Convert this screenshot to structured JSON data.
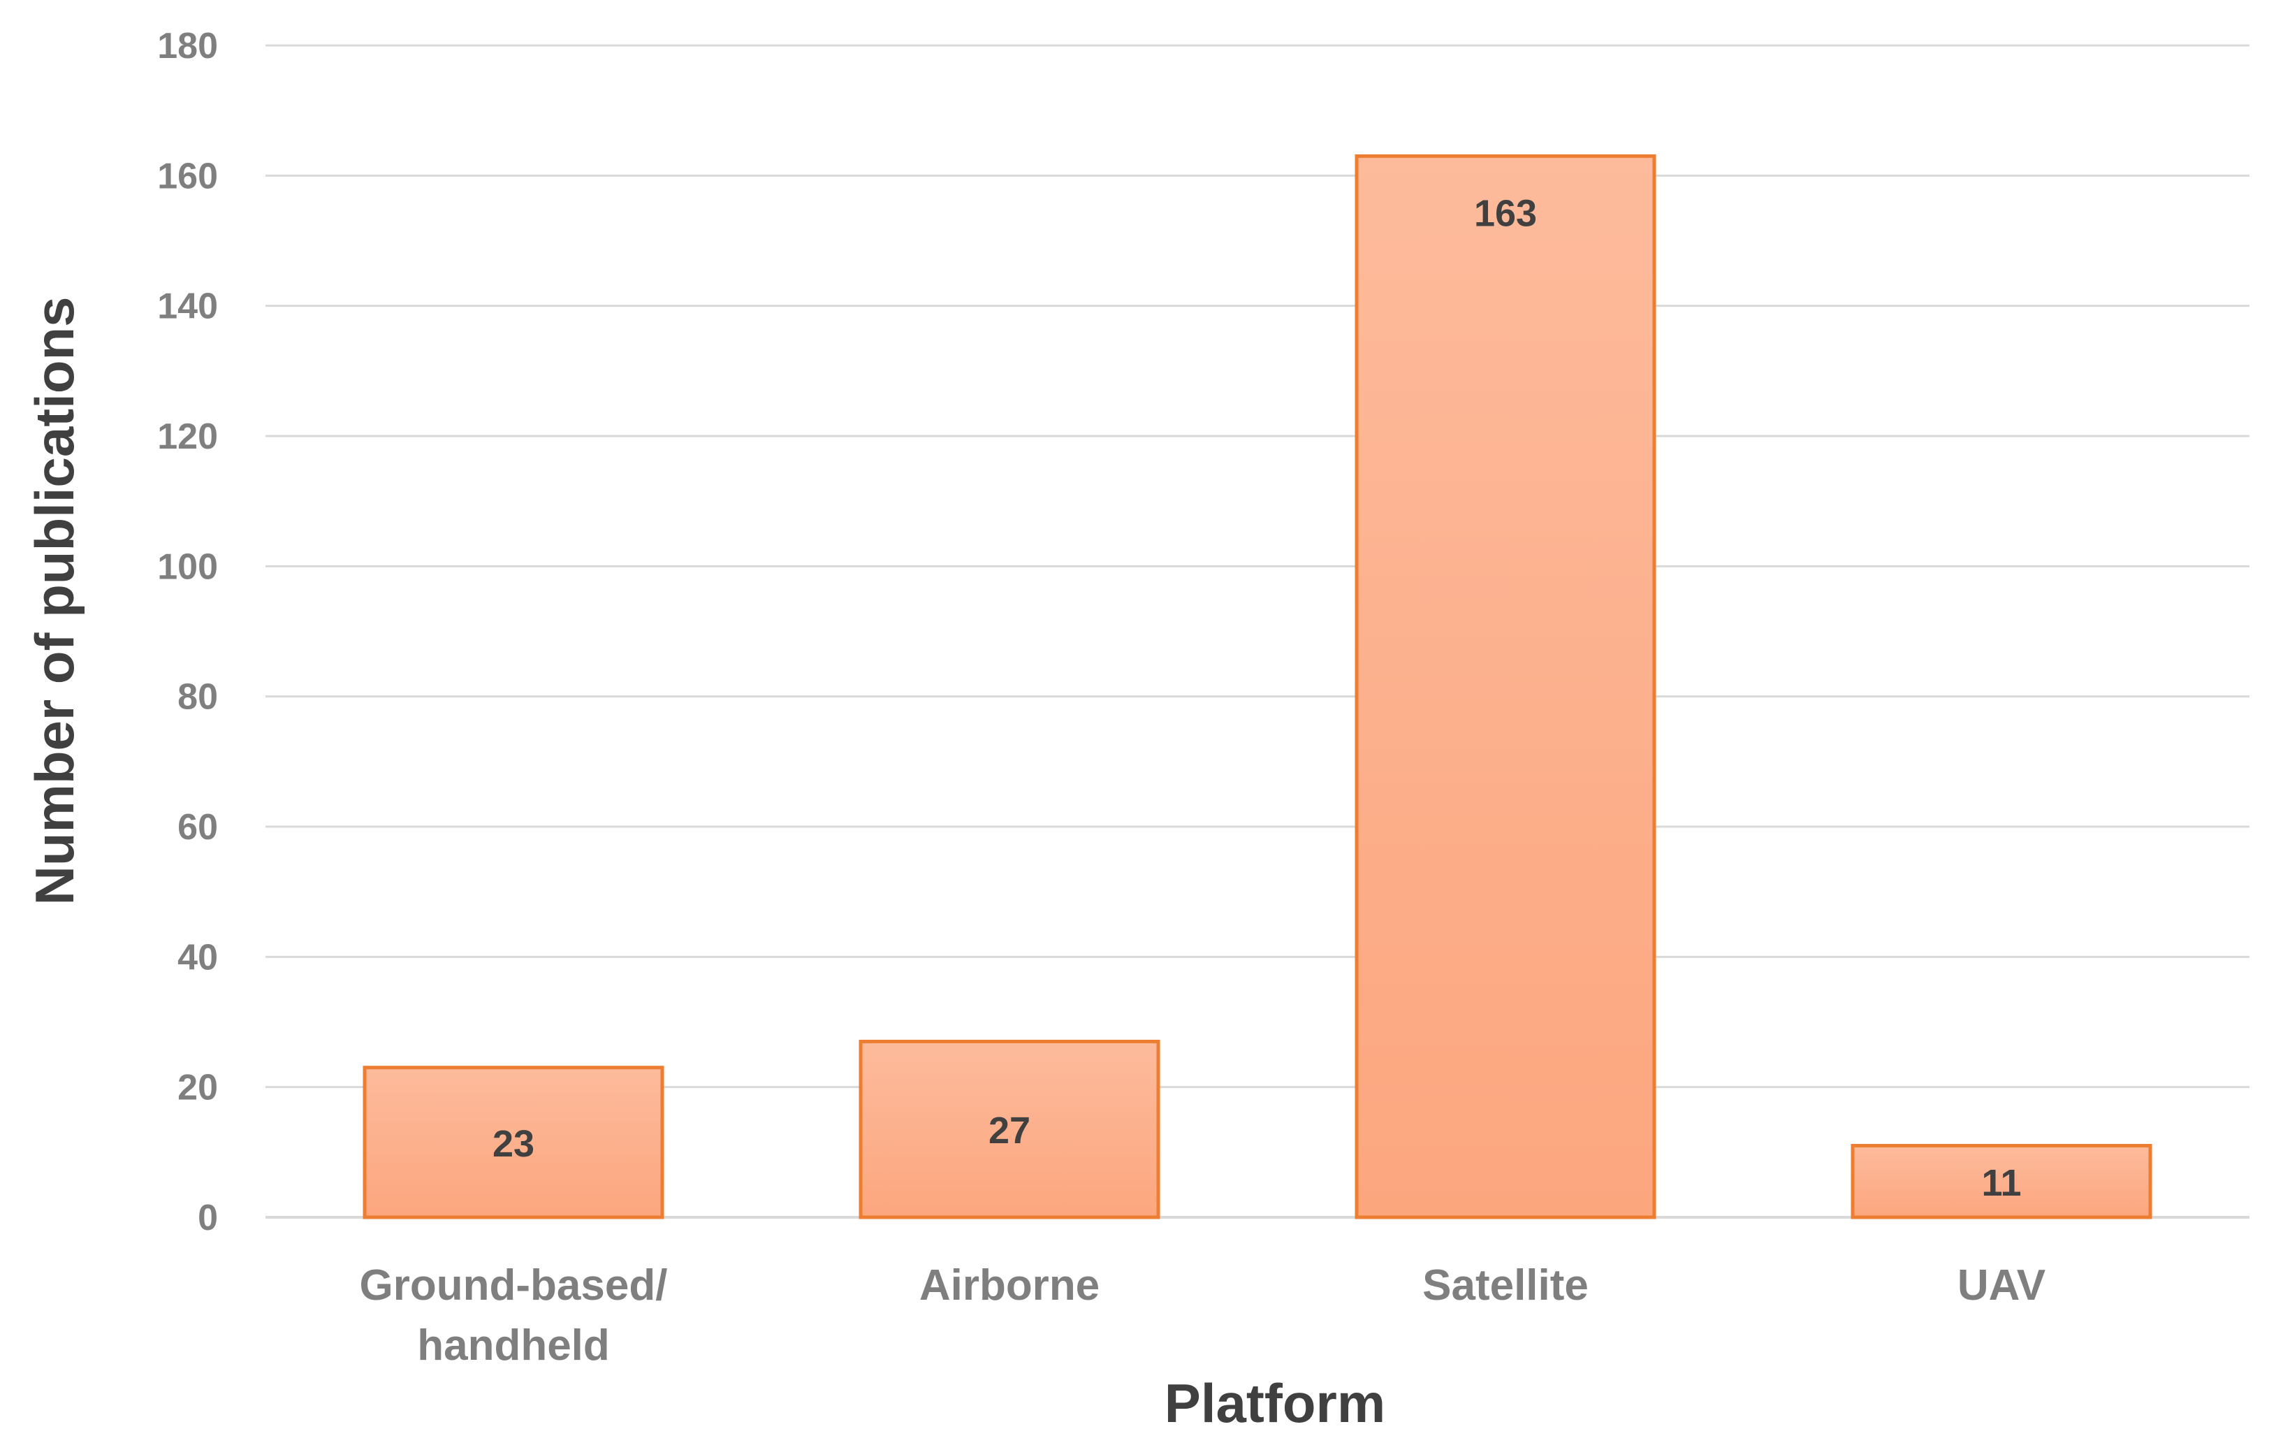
{
  "chart_data": {
    "type": "bar",
    "categories": [
      "Ground-based/\nhandheld",
      "Airborne",
      "Satellite",
      "UAV"
    ],
    "values": [
      23,
      27,
      163,
      11
    ],
    "data_labels": [
      "23",
      "27",
      "163",
      "11"
    ],
    "title": "",
    "xlabel": "Platform",
    "ylabel": "Number of publications",
    "ylim": [
      0,
      180
    ],
    "yticks": [
      0,
      20,
      40,
      60,
      80,
      100,
      120,
      140,
      160,
      180
    ],
    "grid": true,
    "legend": "none",
    "colors": {
      "bar_fill_top": "#fdbb9c",
      "bar_fill_bottom": "#fca67e",
      "bar_edge": "#ed7d31",
      "grid": "#d9d9d9",
      "tick_text": "#7f7f7f",
      "label_text": "#404040"
    }
  }
}
